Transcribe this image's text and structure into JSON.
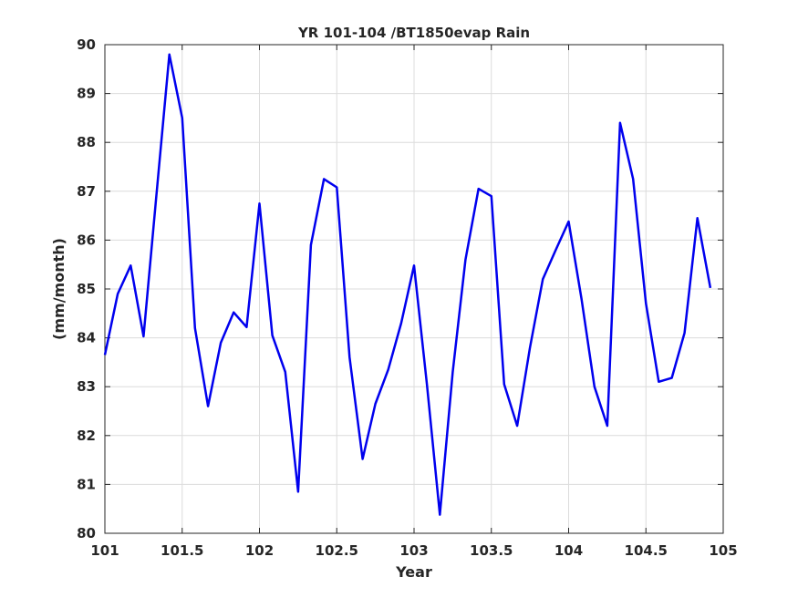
{
  "chart_data": {
    "type": "line",
    "title": "YR 101-104 /BT1850evap Rain",
    "xlabel": "Year",
    "ylabel": "(mm/month)",
    "xlim": [
      101,
      105
    ],
    "ylim": [
      80,
      90
    ],
    "xticks": [
      101,
      101.5,
      102,
      102.5,
      103,
      103.5,
      104,
      104.5,
      105
    ],
    "xtick_labels": [
      "101",
      "101.5",
      "102",
      "102.5",
      "103",
      "103.5",
      "104",
      "104.5",
      "105"
    ],
    "yticks": [
      80,
      81,
      82,
      83,
      84,
      85,
      86,
      87,
      88,
      89,
      90
    ],
    "ytick_labels": [
      "80",
      "81",
      "82",
      "83",
      "84",
      "85",
      "86",
      "87",
      "88",
      "89",
      "90"
    ],
    "grid": true,
    "line_color": "#0000ee",
    "series": [
      {
        "x": [
          101.0,
          101.083,
          101.167,
          101.25,
          101.333,
          101.417,
          101.5,
          101.583,
          101.667,
          101.75,
          101.833,
          101.917,
          102.0,
          102.083,
          102.167,
          102.25,
          102.333,
          102.417,
          102.5,
          102.583,
          102.667,
          102.75,
          102.833,
          102.917,
          103.0,
          103.083,
          103.167,
          103.25,
          103.333,
          103.417,
          103.5,
          103.583,
          103.667,
          103.75,
          103.833,
          103.917,
          104.0,
          104.083,
          104.167,
          104.25,
          104.333,
          104.417,
          104.5,
          104.583,
          104.667,
          104.75,
          104.833,
          104.917
        ],
        "values": [
          83.65,
          84.9,
          85.48,
          84.03,
          86.9,
          89.8,
          88.5,
          84.2,
          82.6,
          83.9,
          84.52,
          84.22,
          86.75,
          84.05,
          83.3,
          80.85,
          85.9,
          87.25,
          87.08,
          83.6,
          81.52,
          82.65,
          83.35,
          84.3,
          85.48,
          83.05,
          80.38,
          83.3,
          85.6,
          87.05,
          86.9,
          83.05,
          82.2,
          83.8,
          85.2,
          85.8,
          86.38,
          84.8,
          83.0,
          82.2,
          88.4,
          87.25,
          84.7,
          83.1,
          83.18,
          84.1,
          86.45,
          85.02
        ]
      }
    ]
  }
}
